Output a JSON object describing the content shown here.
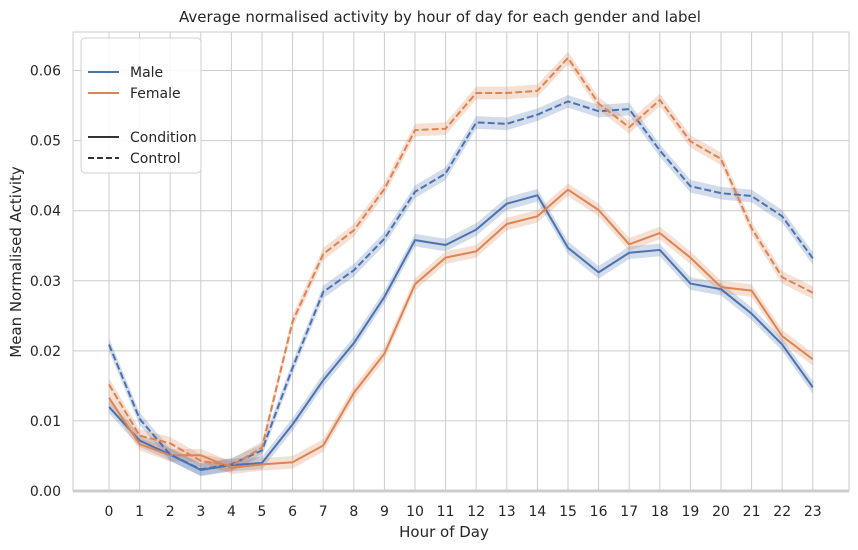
{
  "chart_data": {
    "type": "line",
    "title": "Average normalised activity by hour of day for each gender and label",
    "xlabel": "Hour of Day",
    "ylabel": "Mean Normalised Activity",
    "x": [
      0,
      1,
      2,
      3,
      4,
      5,
      6,
      7,
      8,
      9,
      10,
      11,
      12,
      13,
      14,
      15,
      16,
      17,
      18,
      19,
      20,
      21,
      22,
      23
    ],
    "x_tick_labels": [
      "0",
      "1",
      "2",
      "3",
      "4",
      "5",
      "6",
      "7",
      "8",
      "9",
      "10",
      "11",
      "12",
      "13",
      "14",
      "15",
      "16",
      "17",
      "18",
      "19",
      "20",
      "21",
      "22",
      "23"
    ],
    "ylim": [
      0,
      0.0655
    ],
    "y_ticks": [
      0.0,
      0.01,
      0.02,
      0.03,
      0.04,
      0.05,
      0.06
    ],
    "y_tick_labels": [
      "0.00",
      "0.01",
      "0.02",
      "0.03",
      "0.04",
      "0.05",
      "0.06"
    ],
    "grid": true,
    "legend_position": "top-left",
    "legend": {
      "hue_entries": [
        {
          "label": "Male",
          "color": "#4c72b0"
        },
        {
          "label": "Female",
          "color": "#dd8452"
        }
      ],
      "style_entries": [
        {
          "label": "Condition",
          "dash": "solid"
        },
        {
          "label": "Control",
          "dash": "dashed"
        }
      ]
    },
    "series": [
      {
        "name": "Male",
        "style": "Condition",
        "color": "#4c72b0",
        "dash": "solid",
        "values": [
          0.012,
          0.0072,
          0.0052,
          0.003,
          0.0037,
          0.004,
          0.0095,
          0.0158,
          0.0211,
          0.0277,
          0.0358,
          0.0351,
          0.0373,
          0.041,
          0.0422,
          0.0347,
          0.0312,
          0.034,
          0.0344,
          0.0296,
          0.0288,
          0.0253,
          0.0209,
          0.0148
        ],
        "band": 0.0009
      },
      {
        "name": "Female",
        "style": "Condition",
        "color": "#dd8452",
        "dash": "solid",
        "values": [
          0.0133,
          0.0067,
          0.0051,
          0.0051,
          0.0033,
          0.0038,
          0.0041,
          0.0065,
          0.014,
          0.0196,
          0.0295,
          0.0333,
          0.0342,
          0.0381,
          0.0392,
          0.043,
          0.0401,
          0.0352,
          0.0368,
          0.0333,
          0.0291,
          0.0286,
          0.0221,
          0.0188
        ],
        "band": 0.0009
      },
      {
        "name": "Male",
        "style": "Control",
        "color": "#4c72b0",
        "dash": "dashed",
        "values": [
          0.0209,
          0.0103,
          0.0052,
          0.0031,
          0.0038,
          0.0058,
          0.0176,
          0.0284,
          0.0315,
          0.036,
          0.0427,
          0.0453,
          0.0526,
          0.0524,
          0.0537,
          0.0556,
          0.0542,
          0.0545,
          0.0486,
          0.0435,
          0.0425,
          0.0421,
          0.0392,
          0.0332
        ],
        "band": 0.0009
      },
      {
        "name": "Female",
        "style": "Control",
        "color": "#dd8452",
        "dash": "dashed",
        "values": [
          0.0152,
          0.0079,
          0.0068,
          0.0043,
          0.0036,
          0.0062,
          0.0242,
          0.0338,
          0.0372,
          0.0431,
          0.0515,
          0.0517,
          0.0568,
          0.0568,
          0.0571,
          0.0618,
          0.0553,
          0.0519,
          0.0558,
          0.0499,
          0.0474,
          0.0375,
          0.0305,
          0.0283
        ],
        "band": 0.0009
      }
    ]
  }
}
